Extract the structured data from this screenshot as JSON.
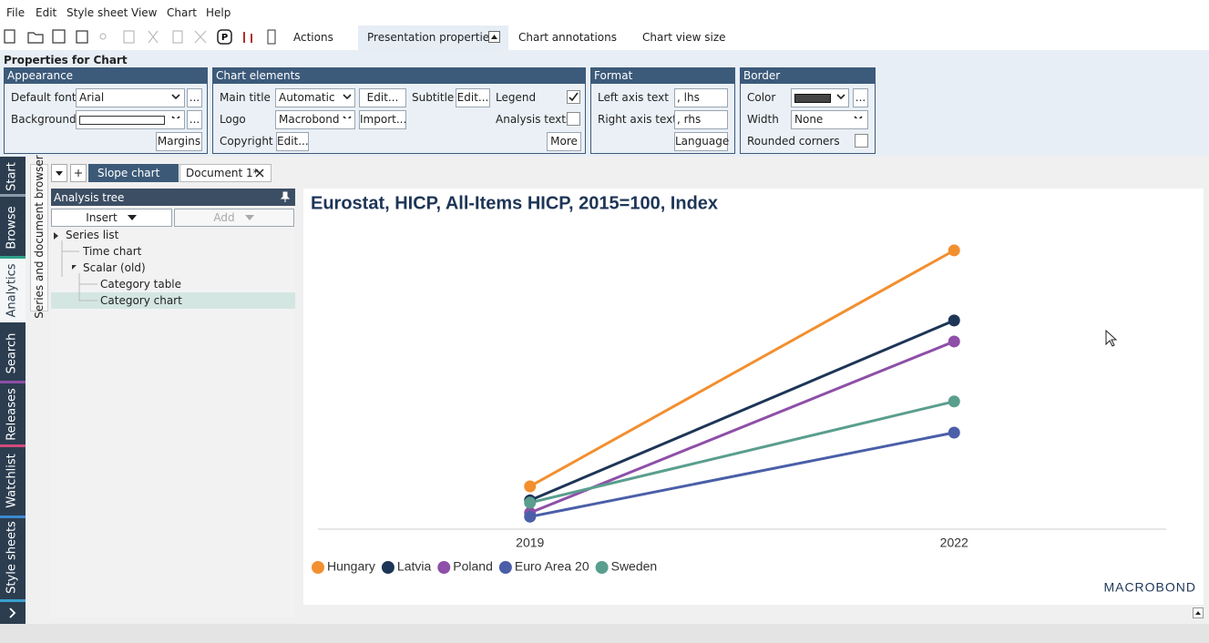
{
  "menu": [
    "File",
    "Edit",
    "Style sheet",
    "View",
    "Chart",
    "Help"
  ],
  "toolbar_tabs": [
    "Actions",
    "Presentation properties",
    "Chart annotations",
    "Chart view size"
  ],
  "properties": {
    "title": "Properties for Chart",
    "ellipsis": "...",
    "appearance": {
      "title": "Appearance",
      "default_font": "Default font",
      "font": "Arial",
      "background": "Background",
      "margins": "Margins"
    },
    "chart_elements": {
      "title": "Chart elements",
      "main_title": "Main title",
      "main_title_value": "Automatic",
      "edit": "Edit...",
      "subtitle": "Subtitle",
      "legend": "Legend",
      "logo": "Logo",
      "logo_value": "Macrobond",
      "import": "Import...",
      "analysis_texts": "Analysis texts",
      "copyright": "Copyright",
      "more": "More"
    },
    "format": {
      "title": "Format",
      "left_axis_text": "Left axis text",
      "left_value": ", lhs",
      "right_axis_text": "Right axis text",
      "right_value": ", rhs",
      "language": "Language"
    },
    "border": {
      "title": "Border",
      "color": "Color",
      "width": "Width",
      "width_value": "None",
      "rounded_corners": "Rounded corners"
    }
  },
  "side_tabs": [
    "Start",
    "Browse",
    "Analytics",
    "Search",
    "Releases",
    "Watchlist",
    "Style sheets"
  ],
  "browser_strip": "Series and document browser",
  "doc_tabs": [
    "Slope chart",
    "Document 1*"
  ],
  "tree": {
    "title": "Analysis tree",
    "insert": "Insert",
    "add": "Add",
    "items": [
      "Series list",
      "Time chart",
      "Scalar (old)",
      "Category table",
      "Category chart"
    ]
  },
  "chart_data": {
    "type": "slope",
    "title": "Eurostat, HICP, All-Items HICP, 2015=100, Index",
    "categories": [
      "2019",
      "2022"
    ],
    "ylim": [
      103,
      143
    ],
    "series": [
      {
        "name": "Hungary",
        "color": "#f28f2f",
        "values": [
          108.5,
          138.8
        ]
      },
      {
        "name": "Latvia",
        "color": "#1d3557",
        "values": [
          106.7,
          129.8
        ]
      },
      {
        "name": "Poland",
        "color": "#8e4fa8",
        "values": [
          105.1,
          127.1
        ]
      },
      {
        "name": "Euro Area 20",
        "color": "#4a5fa8",
        "values": [
          104.6,
          115.4
        ]
      },
      {
        "name": "Sweden",
        "color": "#5a9e8e",
        "values": [
          106.4,
          119.4
        ]
      }
    ],
    "logo": "MACROBOND"
  }
}
